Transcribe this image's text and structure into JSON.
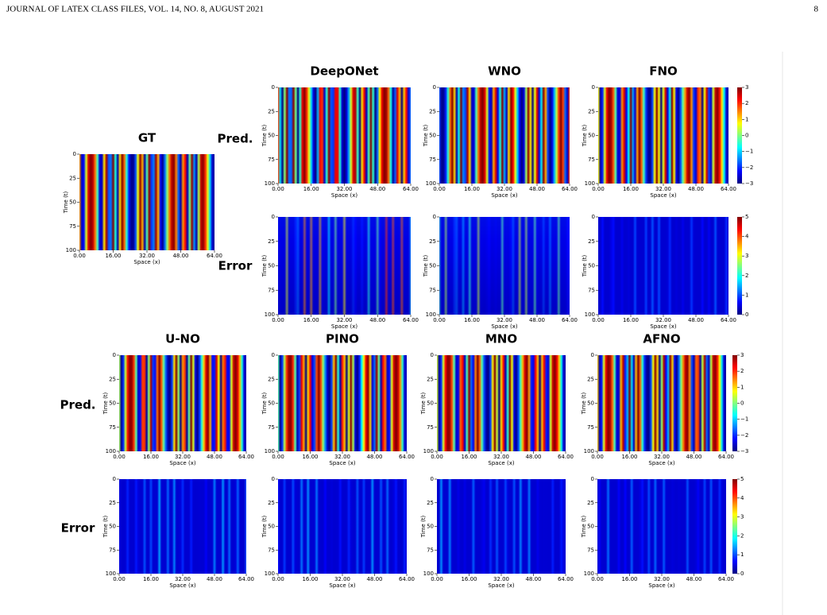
{
  "header": {
    "journal": "JOURNAL OF LATEX CLASS FILES, VOL. 14, NO. 8, AUGUST 2021",
    "page": "8"
  },
  "figure": {
    "row_labels": {
      "pred": "Pred.",
      "error": "Error"
    },
    "axis": {
      "x_label": "Space (x)",
      "y_label": "Time (t)",
      "x_ticks": [
        "0.00",
        "16.00",
        "32.00",
        "48.00",
        "64.00"
      ],
      "y_ticks": [
        "0",
        "25",
        "50",
        "75",
        "100"
      ]
    },
    "colorbar_ticks": {
      "pred": [
        "3",
        "2",
        "1",
        "0",
        "−1",
        "−2",
        "−3"
      ],
      "error": [
        "5",
        "4",
        "3",
        "2",
        "1",
        "0"
      ]
    },
    "panels": {
      "gt": "GT",
      "deeponet": "DeepONet",
      "wno": "WNO",
      "fno": "FNO",
      "uno": "U-NO",
      "pino": "PINO",
      "mno": "MNO",
      "afno": "AFNO"
    }
  }
}
